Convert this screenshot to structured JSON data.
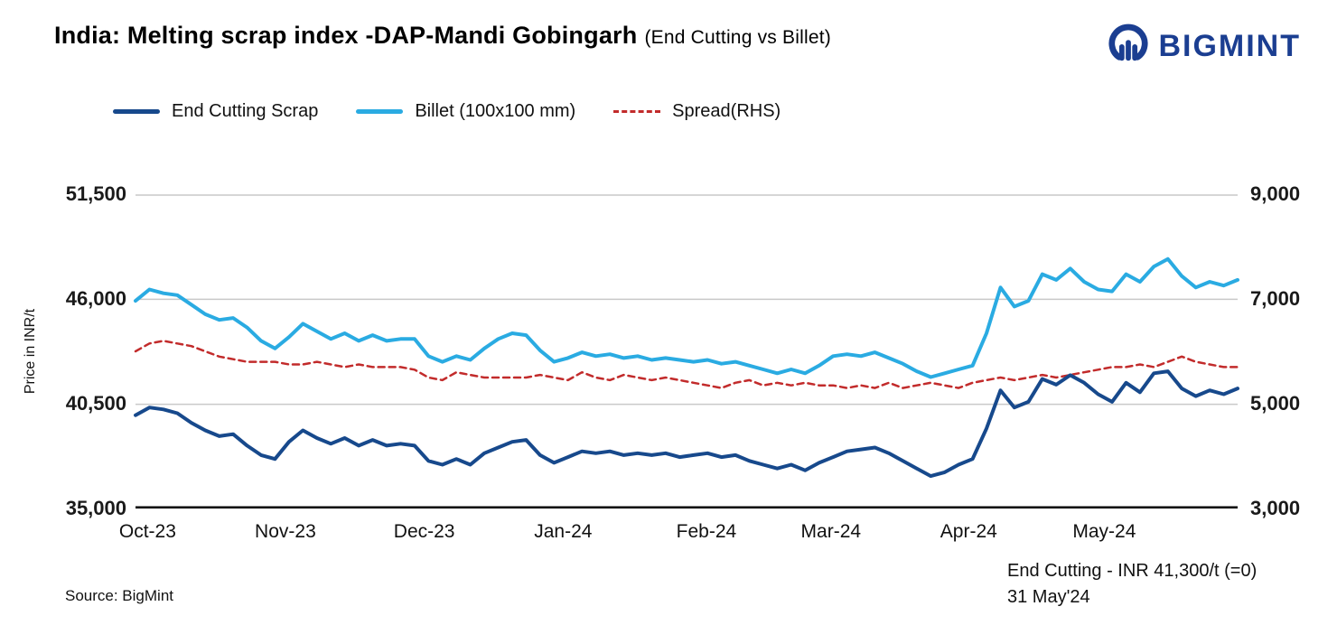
{
  "header": {
    "title": "India: Melting scrap index -DAP-Mandi Gobingarh",
    "subtitle": "(End Cutting vs Billet)",
    "brand_name": "BIGMINT"
  },
  "legend": [
    {
      "label": "End Cutting Scrap",
      "color": "#17498c",
      "dash": false
    },
    {
      "label": "Billet (100x100 mm)",
      "color": "#2aabe2",
      "dash": false
    },
    {
      "label": "Spread(RHS)",
      "color": "#c22b2b",
      "dash": true
    }
  ],
  "annotation": {
    "line1": "End Cutting - INR 41,300/t (=0)",
    "line2": "31 May'24"
  },
  "source": "Source: BigMint",
  "chart_data": {
    "type": "line",
    "title": "India: Melting scrap index -DAP-Mandi Gobingarh (End Cutting vs Billet)",
    "ylabel": "Price in INR/t",
    "grid": true,
    "legend_position": "top",
    "left_axis": {
      "min": 35000,
      "max": 51500,
      "tick_labels": [
        "51,500",
        "46,000",
        "40,500",
        "35,000"
      ]
    },
    "right_axis": {
      "min": 3000,
      "max": 9000,
      "tick_labels": [
        "9,000",
        "7,000",
        "5,000",
        "3,000"
      ]
    },
    "x_ticks": [
      "Oct-23",
      "Nov-23",
      "Dec-23",
      "Jan-24",
      "Feb-24",
      "Mar-24",
      "Apr-24",
      "May-24"
    ],
    "x_tick_percents": [
      1.1,
      13.6,
      26.2,
      38.8,
      51.8,
      63.1,
      75.6,
      87.9
    ],
    "series": [
      {
        "name": "Spread(RHS)",
        "axis": "right",
        "color": "#c22b2b",
        "dash": true,
        "width": 2.5,
        "values": [
          6000,
          6150,
          6200,
          6150,
          6100,
          6000,
          5900,
          5850,
          5800,
          5800,
          5800,
          5750,
          5750,
          5800,
          5750,
          5700,
          5750,
          5700,
          5700,
          5700,
          5650,
          5500,
          5450,
          5600,
          5550,
          5500,
          5500,
          5500,
          5500,
          5550,
          5500,
          5450,
          5600,
          5500,
          5450,
          5550,
          5500,
          5450,
          5500,
          5450,
          5400,
          5350,
          5300,
          5400,
          5450,
          5350,
          5400,
          5350,
          5400,
          5350,
          5350,
          5300,
          5350,
          5300,
          5400,
          5300,
          5350,
          5400,
          5350,
          5300,
          5400,
          5450,
          5500,
          5450,
          5500,
          5550,
          5500,
          5550,
          5600,
          5650,
          5700,
          5700,
          5750,
          5700,
          5800,
          5900,
          5800,
          5750,
          5700,
          5700
        ]
      },
      {
        "name": "End Cutting Scrap",
        "axis": "left",
        "color": "#17498c",
        "dash": false,
        "width": 4,
        "values": [
          39900,
          40300,
          40200,
          40000,
          39500,
          39100,
          38800,
          38900,
          38300,
          37800,
          37600,
          38500,
          39100,
          38700,
          38400,
          38700,
          38300,
          38600,
          38300,
          38400,
          38300,
          37500,
          37300,
          37600,
          37300,
          37900,
          38200,
          38500,
          38600,
          37800,
          37400,
          37700,
          38000,
          37900,
          38000,
          37800,
          37900,
          37800,
          37900,
          37700,
          37800,
          37900,
          37700,
          37800,
          37500,
          37300,
          37100,
          37300,
          37000,
          37400,
          37700,
          38000,
          38100,
          38200,
          37900,
          37500,
          37100,
          36700,
          36900,
          37300,
          37600,
          39200,
          41200,
          40300,
          40600,
          41800,
          41500,
          42000,
          41600,
          41000,
          40600,
          41600,
          41100,
          42100,
          42200,
          41300,
          40900,
          41200,
          41000,
          41300
        ]
      },
      {
        "name": "Billet (100x100 mm)",
        "axis": "left",
        "color": "#2aabe2",
        "dash": false,
        "width": 4,
        "values": [
          45900,
          46500,
          46300,
          46200,
          45700,
          45200,
          44900,
          45000,
          44500,
          43800,
          43400,
          44000,
          44700,
          44300,
          43900,
          44200,
          43800,
          44100,
          43800,
          43900,
          43900,
          43000,
          42700,
          43000,
          42800,
          43400,
          43900,
          44200,
          44100,
          43300,
          42700,
          42900,
          43200,
          43000,
          43100,
          42900,
          43000,
          42800,
          42900,
          42800,
          42700,
          42800,
          42600,
          42700,
          42500,
          42300,
          42100,
          42300,
          42100,
          42500,
          43000,
          43100,
          43000,
          43200,
          42900,
          42600,
          42200,
          41900,
          42100,
          42300,
          42500,
          44200,
          46600,
          45600,
          45900,
          47300,
          47000,
          47600,
          46900,
          46500,
          46400,
          47300,
          46900,
          47700,
          48100,
          47200,
          46600,
          46900,
          46700,
          47000
        ]
      }
    ]
  }
}
